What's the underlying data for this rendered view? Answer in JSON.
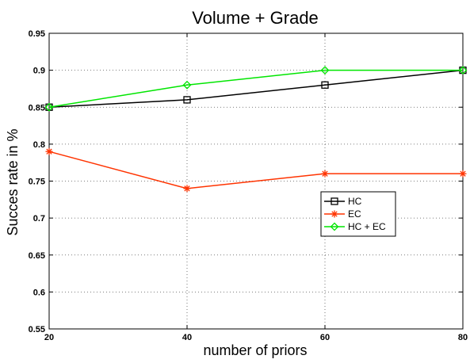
{
  "chart_data": {
    "type": "line",
    "title": "Volume + Grade",
    "xlabel": "number of priors",
    "ylabel": "Succes rate in %",
    "x": [
      20,
      40,
      60,
      80
    ],
    "xlim": [
      20,
      80
    ],
    "ylim": [
      0.55,
      0.95
    ],
    "xticks": [
      "20",
      "40",
      "60",
      "80"
    ],
    "yticks": [
      "0.55",
      "0.6",
      "0.65",
      "0.7",
      "0.75",
      "0.8",
      "0.85",
      "0.9",
      "0.95"
    ],
    "grid": true,
    "legend_position": "center-right",
    "series": [
      {
        "name": "HC",
        "values": [
          0.85,
          0.86,
          0.88,
          0.9
        ],
        "color": "#000000",
        "marker": "square"
      },
      {
        "name": "EC",
        "values": [
          0.79,
          0.74,
          0.76,
          0.76
        ],
        "color": "#ff3300",
        "marker": "star"
      },
      {
        "name": "HC + EC",
        "values": [
          0.85,
          0.88,
          0.9,
          0.9
        ],
        "color": "#00e600",
        "marker": "diamond"
      }
    ]
  }
}
